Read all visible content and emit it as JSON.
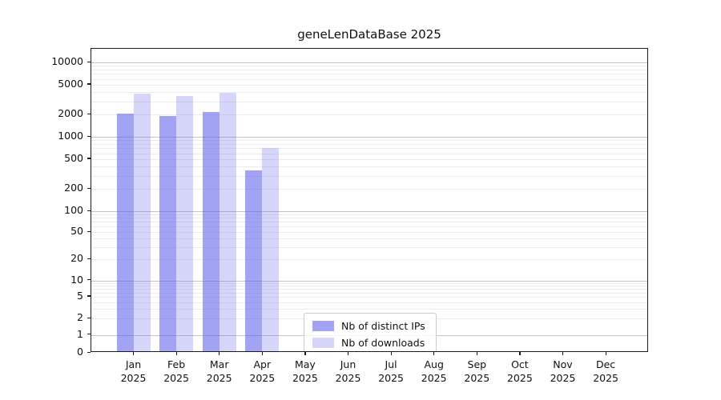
{
  "chart_data": {
    "type": "bar",
    "title": "geneLenDataBase 2025",
    "year_label": "2025",
    "categories": [
      "Jan",
      "Feb",
      "Mar",
      "Apr",
      "May",
      "Jun",
      "Jul",
      "Aug",
      "Sep",
      "Oct",
      "Nov",
      "Dec"
    ],
    "series": [
      {
        "name": "Nb of distinct IPs",
        "color": "rgba(96,96,235,0.58)",
        "values": [
          2050,
          1900,
          2150,
          350,
          null,
          null,
          null,
          null,
          null,
          null,
          null,
          null
        ]
      },
      {
        "name": "Nb of downloads",
        "color": "rgba(96,96,235,0.26)",
        "values": [
          3800,
          3500,
          3900,
          710,
          null,
          null,
          null,
          null,
          null,
          null,
          null,
          null
        ]
      }
    ],
    "xlabel": "",
    "ylabel": "",
    "yscale": "symlog",
    "yticks": [
      0,
      1,
      2,
      5,
      10,
      20,
      50,
      100,
      200,
      500,
      1000,
      2000,
      5000,
      10000
    ],
    "ylim": [
      0,
      15000
    ],
    "grid": "horizontal minor + major at powers of 10",
    "legend_position": "inside bottom-center"
  },
  "colors": {
    "bar_distinct_ips_rendered": "#a5a5f0",
    "bar_downloads_rendered": "#d8d8f7",
    "grid_major": "#c4c4c4",
    "grid_minor": "#ebebeb",
    "axis": "#1a1a1a",
    "text": "#111111",
    "legend_border": "#cccccc"
  }
}
